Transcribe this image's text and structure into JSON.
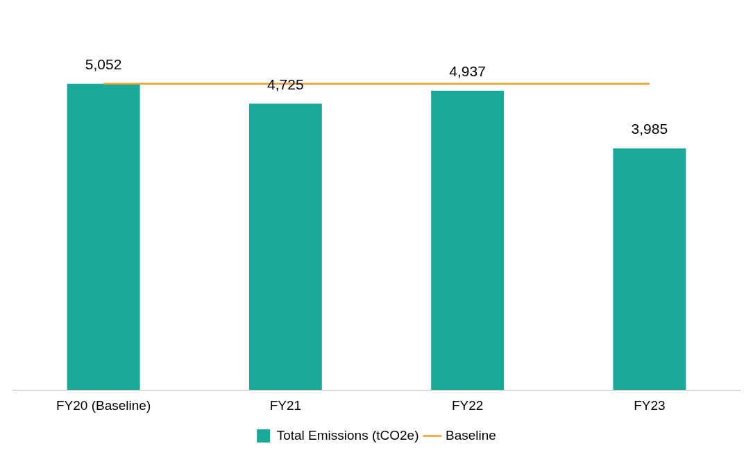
{
  "chart_data": {
    "type": "bar",
    "categories": [
      "FY20 (Baseline)",
      "FY21",
      "FY22",
      "FY23"
    ],
    "series": [
      {
        "name": "Total Emissions (tCO2e)",
        "color": "#1aa898",
        "values": [
          5052,
          4725,
          4937,
          3985
        ],
        "value_labels": [
          "5,052",
          "4,725",
          "4,937",
          "3,985"
        ]
      },
      {
        "name": "Baseline",
        "type": "line",
        "color": "#f0a030",
        "values": [
          5052,
          5052,
          5052,
          5052
        ],
        "marker": "none"
      }
    ],
    "tick_labels": "x",
    "grid": false,
    "legend": "bottom"
  }
}
